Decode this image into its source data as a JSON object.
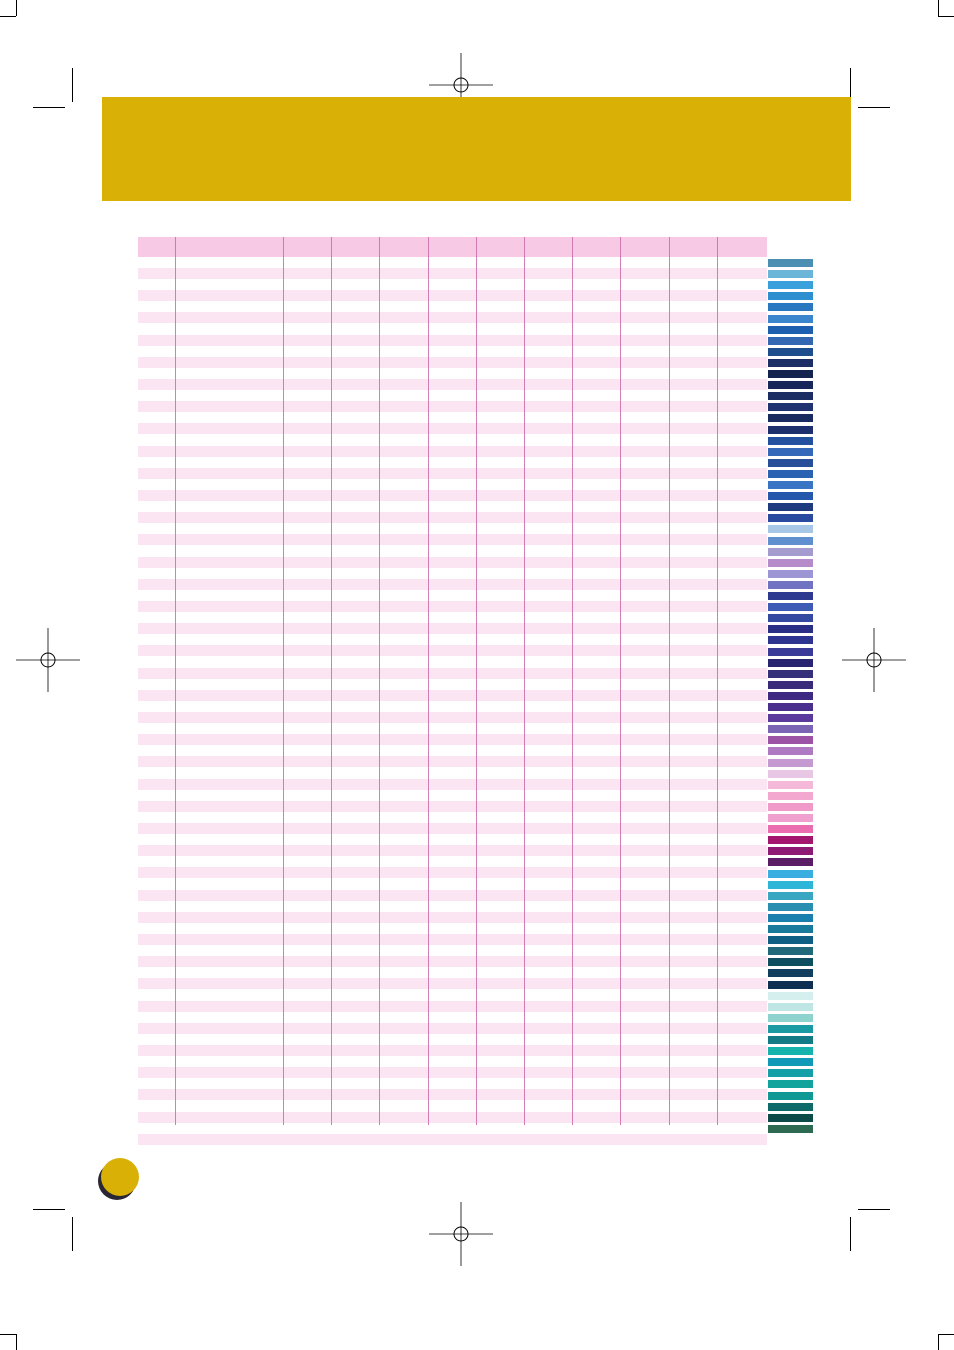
{
  "banner": {
    "color": "#d9b006",
    "title": ""
  },
  "page_badge": {
    "color": "#d9b006",
    "number": ""
  },
  "table": {
    "header_color": "#f7c9e4",
    "stripe_color": "#fce5f2",
    "rule_color": "#c96aa8",
    "column_count": 12,
    "row_count": 79,
    "headers": [],
    "rows": []
  },
  "swatches": [
    "#4b8fb3",
    "#6bb6d8",
    "#3aa0dc",
    "#2d8fd0",
    "#2a78bf",
    "#3b86cc",
    "#1f5fb0",
    "#3467b1",
    "#1e4e8e",
    "#1b2f66",
    "#14244e",
    "#17275a",
    "#1c2d63",
    "#1f3370",
    "#1a2b60",
    "#1d2f6c",
    "#2450a0",
    "#3568b8",
    "#2a4f9a",
    "#2c62b2",
    "#3a74c4",
    "#2558ad",
    "#1f3a7e",
    "#2a4aa0",
    "#a8c6e6",
    "#5f8fcf",
    "#a49ccf",
    "#b58bc9",
    "#9c96d4",
    "#6f73c2",
    "#2d3a8f",
    "#3d5bb5",
    "#3449a0",
    "#2a2f86",
    "#2d3590",
    "#3a3a98",
    "#2a2570",
    "#34307a",
    "#3a2a7a",
    "#3e2a82",
    "#4a2f8e",
    "#5a3a9c",
    "#7b64b4",
    "#9c52a5",
    "#b07ac2",
    "#c59ad0",
    "#e7c7e3",
    "#f4b8d8",
    "#f3a8cf",
    "#ef9ac8",
    "#f0a0cf",
    "#ea6db0",
    "#a3166e",
    "#8e1a74",
    "#5a1d66",
    "#3aaee0",
    "#2eb6d8",
    "#3aa7c2",
    "#2a8eb0",
    "#1b7fae",
    "#1a7a9b",
    "#0f5f84",
    "#21697a",
    "#0f4e5e",
    "#123f5e",
    "#0e2f52",
    "#d4efed",
    "#bfe6e4",
    "#8fd3cf",
    "#1a9aa2",
    "#137b86",
    "#16b3ad",
    "#1399b8",
    "#14a0a6",
    "#12a39d",
    "#0f9894",
    "#0f6a6a",
    "#0d4a48",
    "#2e6a52"
  ]
}
